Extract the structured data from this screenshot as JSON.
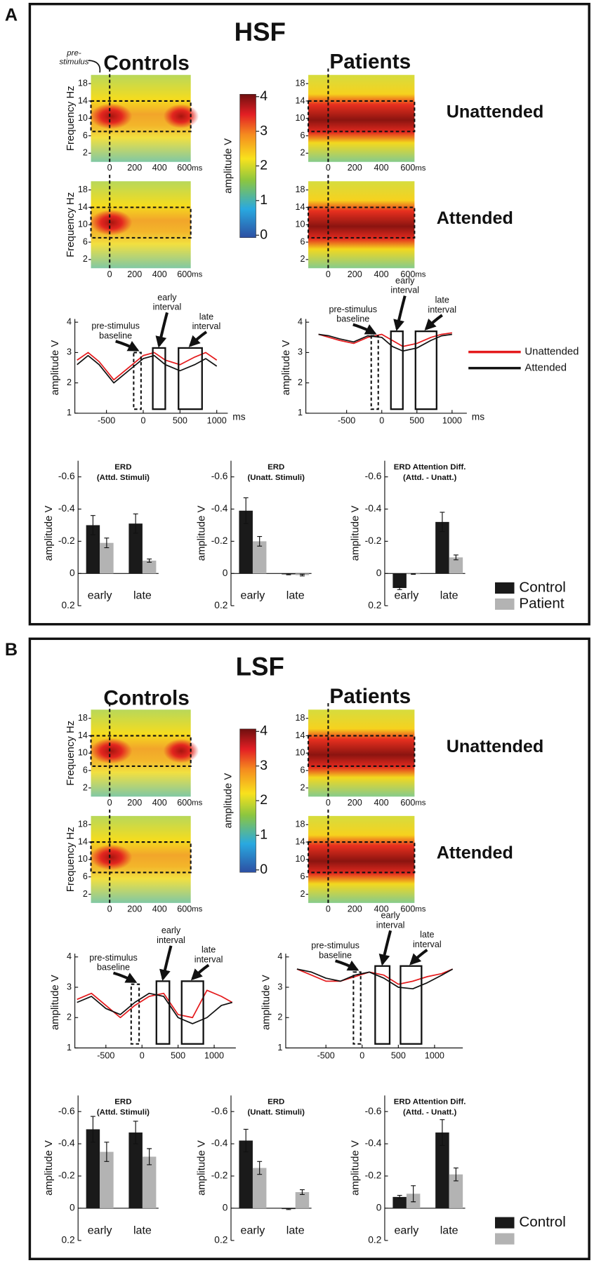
{
  "panels": [
    {
      "label": "A",
      "title": "HSF",
      "group_titles": [
        "Controls",
        "Patients"
      ],
      "condition_labels": [
        "Unattended",
        "Attended"
      ],
      "annotation": "pre-stimulus",
      "heatmap": {
        "ylabel": "Frequency  Hz",
        "ylim": [
          0,
          20
        ],
        "yticks": [
          2,
          6,
          10,
          14,
          18
        ],
        "xlim": [
          -150,
          650
        ],
        "xticks": [
          0,
          200,
          400,
          600
        ],
        "xunit": "ms"
      },
      "colorbar": {
        "label": "amplitude  V",
        "lim": [
          0,
          4
        ],
        "ticks": [
          0,
          1,
          2,
          3,
          4
        ]
      },
      "line_charts": [
        {
          "type": "line",
          "ylabel": "amplitude  V",
          "xunit": "ms",
          "xlim": [
            -930,
            1150
          ],
          "xticks": [
            -500,
            0,
            500,
            1000
          ],
          "ylim": [
            1,
            4
          ],
          "yticks": [
            1,
            2,
            3,
            4
          ],
          "x": [
            -900,
            -750,
            -600,
            -400,
            -200,
            0,
            150,
            300,
            500,
            700,
            850,
            1000
          ],
          "series": [
            {
              "color": "#e41a1c",
              "values": [
                2.75,
                3.0,
                2.7,
                2.1,
                2.5,
                2.9,
                3.0,
                2.75,
                2.6,
                2.85,
                3.0,
                2.75
              ]
            },
            {
              "color": "#111111",
              "values": [
                2.6,
                2.9,
                2.6,
                2.0,
                2.4,
                2.8,
                2.9,
                2.6,
                2.4,
                2.6,
                2.8,
                2.55
              ]
            }
          ],
          "intervals": [
            {
              "label": "pre-stimulus baseline",
              "range": [
                -130,
                -30
              ],
              "top": 3.0,
              "dashed": true
            },
            {
              "label": "early interval",
              "range": [
                130,
                300
              ],
              "top": 3.15
            },
            {
              "label": "late interval",
              "range": [
                480,
                800
              ],
              "top": 3.15
            }
          ]
        },
        {
          "type": "line",
          "ylabel": "amplitude  V",
          "xunit": "ms",
          "xlim": [
            -1080,
            1210
          ],
          "xticks": [
            -500,
            0,
            500,
            1000
          ],
          "ylim": [
            1,
            4
          ],
          "yticks": [
            1,
            2,
            3,
            4
          ],
          "x": [
            -900,
            -750,
            -600,
            -400,
            -200,
            0,
            150,
            300,
            500,
            700,
            850,
            1000
          ],
          "series": [
            {
              "name": "Unattended",
              "color": "#e41a1c",
              "values": [
                3.6,
                3.5,
                3.4,
                3.3,
                3.5,
                3.6,
                3.4,
                3.2,
                3.3,
                3.5,
                3.6,
                3.65
              ]
            },
            {
              "name": "Attended",
              "color": "#111111",
              "values": [
                3.6,
                3.55,
                3.45,
                3.35,
                3.55,
                3.5,
                3.2,
                3.05,
                3.15,
                3.4,
                3.55,
                3.6
              ]
            }
          ],
          "intervals": [
            {
              "label": "pre-stimulus baseline",
              "range": [
                -150,
                -50
              ],
              "top": 3.55,
              "dashed": true
            },
            {
              "label": "early interval",
              "range": [
                130,
                300
              ],
              "top": 3.7
            },
            {
              "label": "late interval",
              "range": [
                480,
                780
              ],
              "top": 3.7
            }
          ]
        }
      ],
      "bar_charts": [
        {
          "type": "bar",
          "title": "ERD",
          "subtitle": "(Attd. Stimuli)",
          "ylabel": "amplitude  V",
          "categories": [
            "early",
            "late"
          ],
          "ylim": [
            0.2,
            -0.7
          ],
          "yticks": [
            -0.6,
            -0.4,
            -0.2,
            0,
            0.2
          ],
          "series": [
            {
              "name": "Control",
              "color": "#1a1a1a",
              "values": [
                -0.3,
                -0.31
              ],
              "errors": [
                0.06,
                0.06
              ]
            },
            {
              "name": "Patient",
              "color": "#b3b3b3",
              "values": [
                -0.19,
                -0.08
              ],
              "errors": [
                0.03,
                0.01
              ]
            }
          ]
        },
        {
          "type": "bar",
          "title": "ERD",
          "subtitle": "(Unatt. Stimuli)",
          "ylabel": "amplitude  V",
          "categories": [
            "early",
            "late"
          ],
          "ylim": [
            0.2,
            -0.7
          ],
          "yticks": [
            -0.6,
            -0.4,
            -0.2,
            0,
            0.2
          ],
          "series": [
            {
              "name": "Control",
              "color": "#1a1a1a",
              "values": [
                -0.39,
                0.005
              ],
              "errors": [
                0.08,
                0.003
              ]
            },
            {
              "name": "Patient",
              "color": "#b3b3b3",
              "values": [
                -0.2,
                0.01
              ],
              "errors": [
                0.03,
                0.005
              ]
            }
          ]
        },
        {
          "type": "bar",
          "title": "ERD Attention Diff.",
          "subtitle": "(Attd. - Unatt.)",
          "ylabel": "amplitude  V",
          "categories": [
            "early",
            "late"
          ],
          "ylim": [
            0.2,
            -0.7
          ],
          "yticks": [
            -0.6,
            -0.4,
            -0.2,
            0,
            0.2
          ],
          "series": [
            {
              "name": "Control",
              "color": "#1a1a1a",
              "values": [
                0.09,
                -0.32
              ],
              "errors": [
                0.01,
                0.06
              ]
            },
            {
              "name": "Patient",
              "color": "#b3b3b3",
              "values": [
                0.003,
                -0.1
              ],
              "errors": [
                0.002,
                0.015
              ]
            }
          ]
        }
      ]
    },
    {
      "label": "B",
      "title": "LSF",
      "group_titles": [
        "Controls",
        "Patients"
      ],
      "condition_labels": [
        "Unattended",
        "Attended"
      ],
      "heatmap": {
        "ylabel": "Frequency  Hz",
        "ylim": [
          0,
          20
        ],
        "yticks": [
          2,
          6,
          10,
          14,
          18
        ],
        "xlim": [
          -150,
          650
        ],
        "xticks": [
          0,
          200,
          400,
          600
        ],
        "xunit": "ms"
      },
      "colorbar": {
        "label": "amplitude  V",
        "lim": [
          0,
          4
        ],
        "ticks": [
          0,
          1,
          2,
          3,
          4
        ]
      },
      "line_charts": [
        {
          "type": "line",
          "ylabel": "amplitude  V",
          "xlim": [
            -930,
            1300
          ],
          "xticks": [
            -500,
            0,
            500,
            1000
          ],
          "ylim": [
            1,
            4
          ],
          "yticks": [
            1,
            2,
            3,
            4
          ],
          "x": [
            -900,
            -700,
            -500,
            -300,
            -100,
            100,
            300,
            500,
            700,
            900,
            1100,
            1250
          ],
          "series": [
            {
              "color": "#e41a1c",
              "values": [
                2.6,
                2.8,
                2.4,
                2.0,
                2.4,
                2.7,
                2.8,
                2.1,
                2.0,
                2.9,
                2.7,
                2.5
              ]
            },
            {
              "color": "#111111",
              "values": [
                2.5,
                2.7,
                2.3,
                2.1,
                2.5,
                2.8,
                2.7,
                2.0,
                1.8,
                2.0,
                2.4,
                2.5
              ]
            }
          ],
          "intervals": [
            {
              "label": "pre-stimulus baseline",
              "range": [
                -150,
                -40
              ],
              "top": 3.1,
              "dashed": true
            },
            {
              "label": "early interval",
              "range": [
                200,
                380
              ],
              "top": 3.2
            },
            {
              "label": "late interval",
              "range": [
                550,
                850
              ],
              "top": 3.2
            }
          ]
        },
        {
          "type": "line",
          "ylabel": "amplitude  V",
          "xlim": [
            -1055,
            1390
          ],
          "xticks": [
            -500,
            0,
            500,
            1000
          ],
          "ylim": [
            1,
            4
          ],
          "yticks": [
            1,
            2,
            3,
            4
          ],
          "x": [
            -900,
            -700,
            -500,
            -300,
            -100,
            100,
            300,
            500,
            700,
            900,
            1100,
            1250
          ],
          "series": [
            {
              "color": "#e41a1c",
              "values": [
                3.6,
                3.4,
                3.2,
                3.2,
                3.35,
                3.5,
                3.4,
                3.1,
                3.2,
                3.35,
                3.45,
                3.6
              ]
            },
            {
              "color": "#111111",
              "values": [
                3.6,
                3.5,
                3.3,
                3.2,
                3.4,
                3.5,
                3.3,
                3.0,
                2.95,
                3.15,
                3.4,
                3.6
              ]
            }
          ],
          "intervals": [
            {
              "label": "pre-stimulus baseline",
              "range": [
                -120,
                -20
              ],
              "top": 3.5,
              "dashed": true
            },
            {
              "label": "early interval",
              "range": [
                180,
                380
              ],
              "top": 3.7
            },
            {
              "label": "late interval",
              "range": [
                530,
                820
              ],
              "top": 3.7
            }
          ]
        }
      ],
      "bar_charts": [
        {
          "type": "bar",
          "title": "ERD",
          "subtitle": "(Attd. Stimuli)",
          "ylabel": "amplitude  V",
          "categories": [
            "early",
            "late"
          ],
          "ylim": [
            0.2,
            -0.7
          ],
          "yticks": [
            -0.6,
            -0.4,
            -0.2,
            0,
            0.2
          ],
          "series": [
            {
              "name": "Control",
              "color": "#1a1a1a",
              "values": [
                -0.49,
                -0.47
              ],
              "errors": [
                0.08,
                0.07
              ]
            },
            {
              "color": "#b3b3b3",
              "values": [
                -0.35,
                -0.32
              ],
              "errors": [
                0.06,
                0.05
              ]
            }
          ]
        },
        {
          "type": "bar",
          "title": "ERD",
          "subtitle": "(Unatt. Stimuli)",
          "ylabel": "amplitude  V",
          "categories": [
            "early",
            "late"
          ],
          "ylim": [
            0.2,
            -0.7
          ],
          "yticks": [
            -0.6,
            -0.4,
            -0.2,
            0,
            0.2
          ],
          "series": [
            {
              "name": "Control",
              "color": "#1a1a1a",
              "values": [
                -0.42,
                0.005
              ],
              "errors": [
                0.07,
                0.003
              ]
            },
            {
              "color": "#b3b3b3",
              "values": [
                -0.25,
                -0.1
              ],
              "errors": [
                0.04,
                0.015
              ]
            }
          ]
        },
        {
          "type": "bar",
          "title": "ERD Attention Diff.",
          "subtitle": "(Attd. - Unatt.)",
          "ylabel": "amplitude  V",
          "categories": [
            "early",
            "late"
          ],
          "ylim": [
            0.2,
            -0.7
          ],
          "yticks": [
            -0.6,
            -0.4,
            -0.2,
            0,
            0.2
          ],
          "series": [
            {
              "name": "Control",
              "color": "#1a1a1a",
              "values": [
                -0.07,
                -0.47
              ],
              "errors": [
                0.01,
                0.08
              ]
            },
            {
              "color": "#b3b3b3",
              "values": [
                -0.09,
                -0.21
              ],
              "errors": [
                0.05,
                0.04
              ]
            }
          ]
        }
      ]
    }
  ]
}
